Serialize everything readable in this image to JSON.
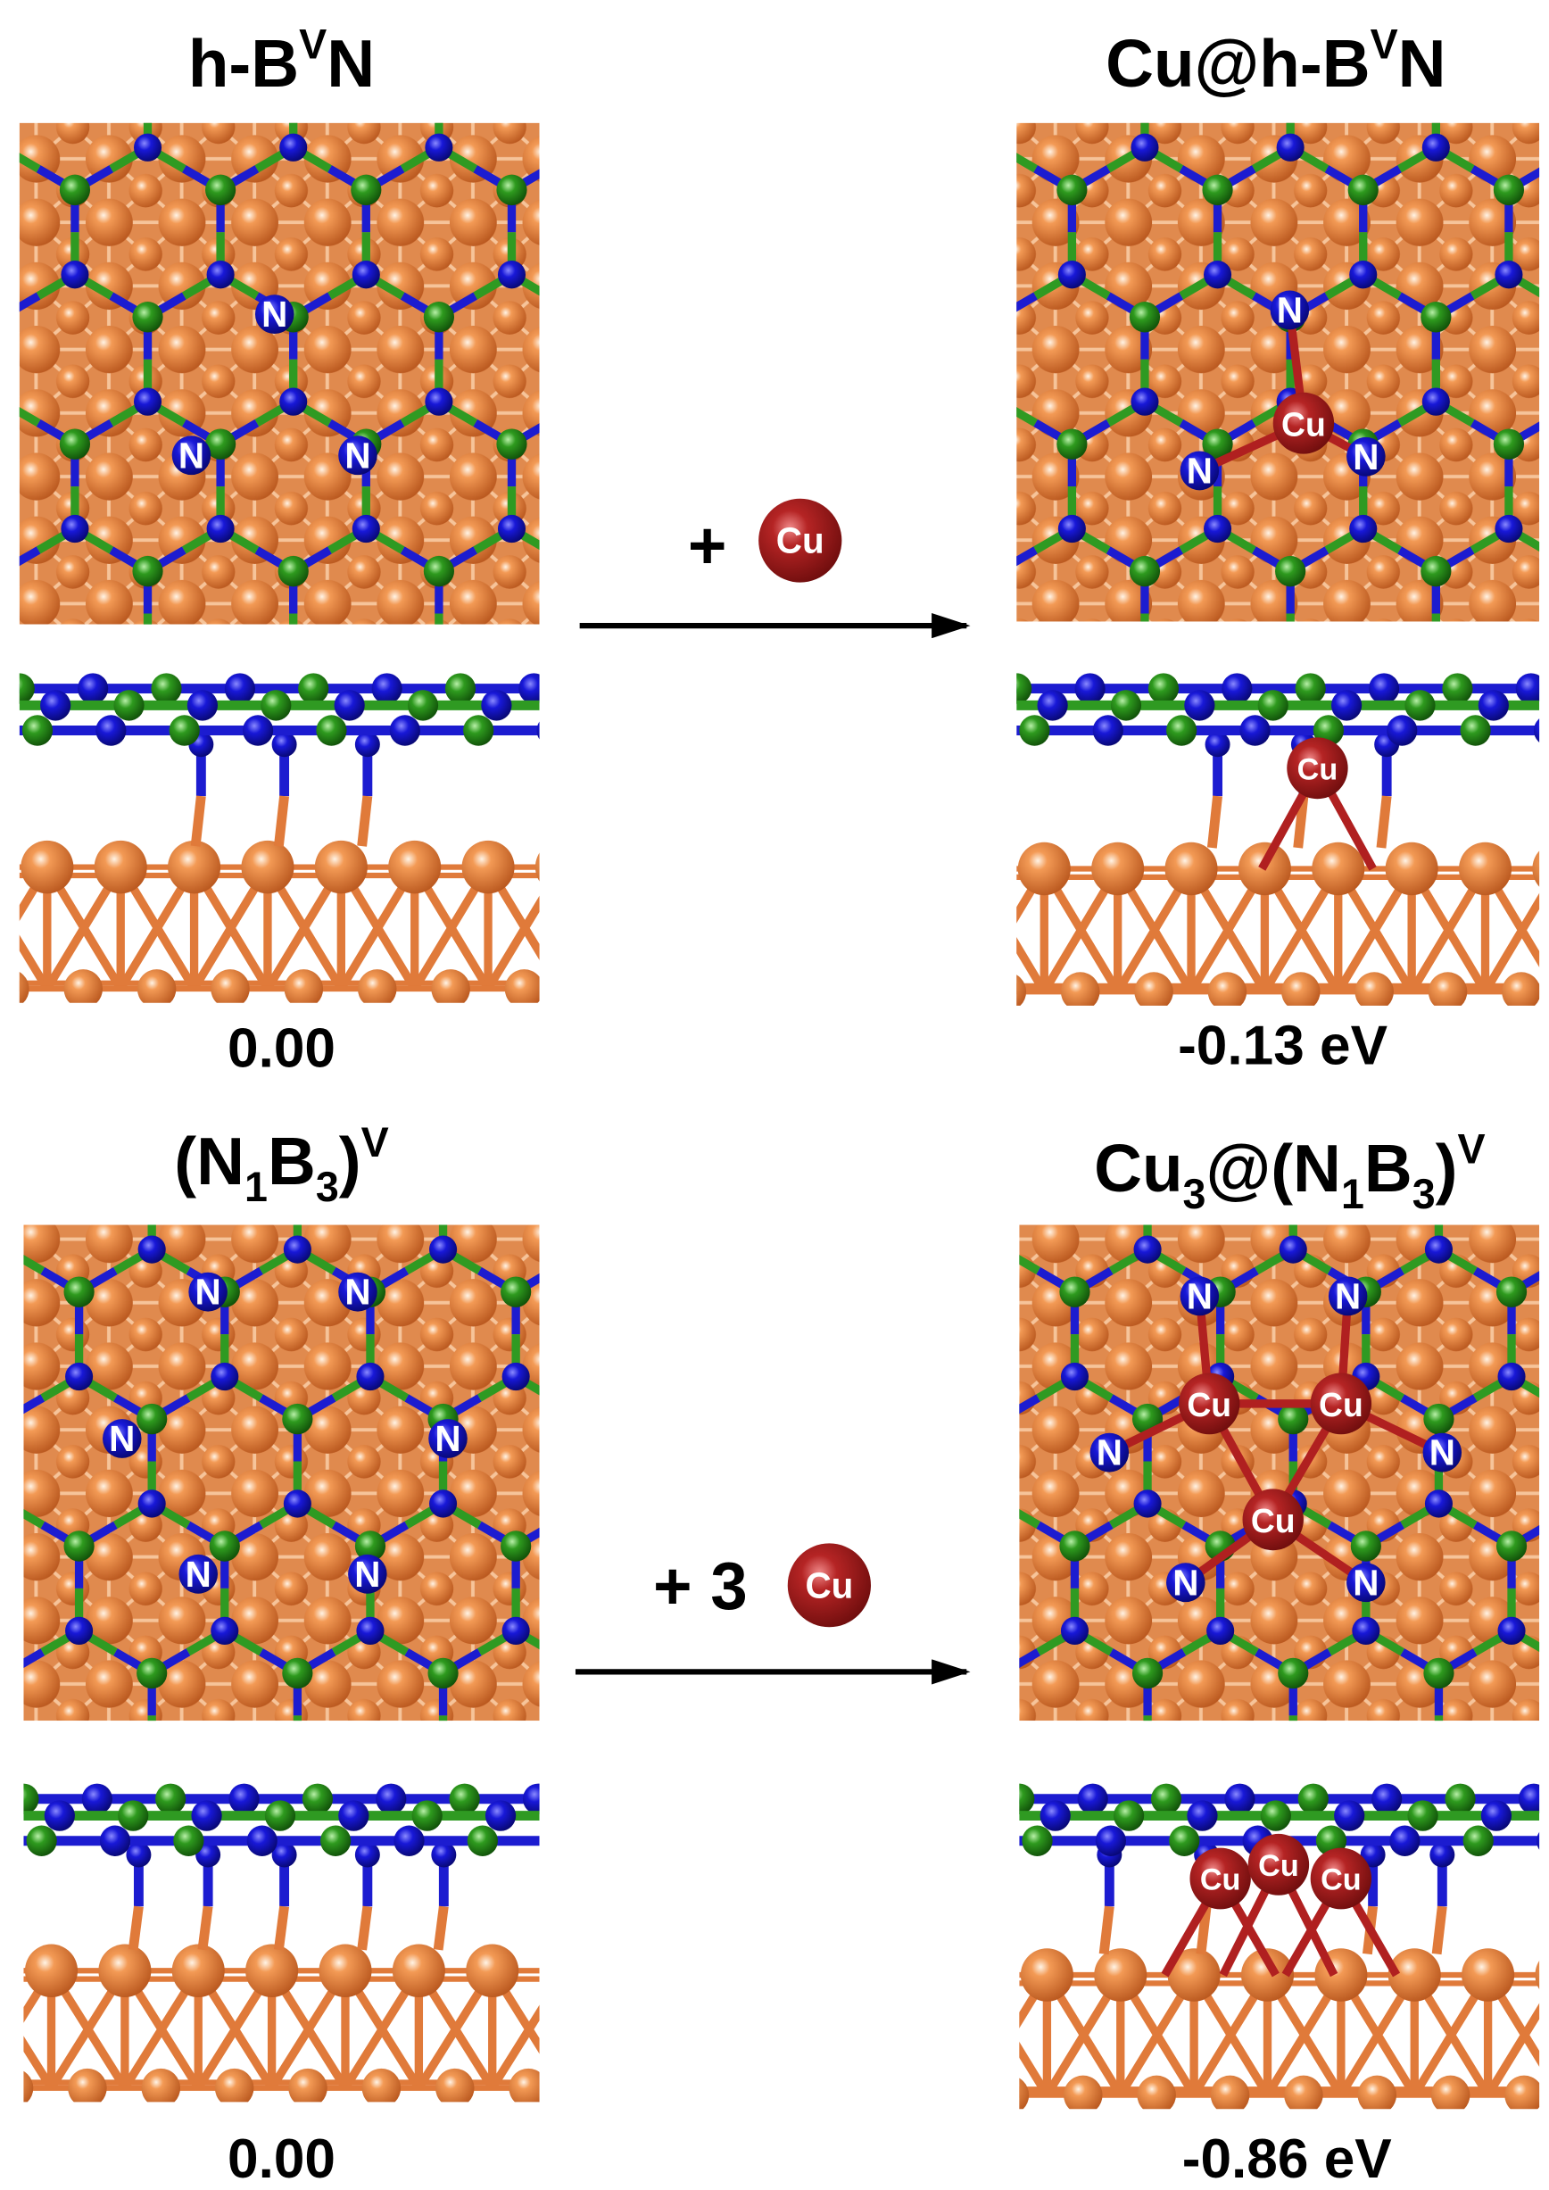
{
  "panels": [
    {
      "title": [
        {
          "text": "h-B"
        },
        {
          "text": "V",
          "style": "sup"
        },
        {
          "text": "N"
        }
      ],
      "energy": "0.00",
      "top_labels": [
        "N",
        "N",
        "N"
      ],
      "side_labels": []
    },
    {
      "title": [
        {
          "text": "Cu@h-B"
        },
        {
          "text": "V",
          "style": "sup"
        },
        {
          "text": "N"
        }
      ],
      "energy": "-0.13 eV",
      "top_labels": [
        "N",
        "Cu",
        "N",
        "N"
      ],
      "side_labels": [
        "Cu"
      ]
    },
    {
      "title": [
        {
          "text": "(N"
        },
        {
          "text": "1",
          "style": "sub"
        },
        {
          "text": "B"
        },
        {
          "text": "3",
          "style": "sub"
        },
        {
          "text": ")"
        },
        {
          "text": "V",
          "style": "sup"
        }
      ],
      "energy": "0.00",
      "top_labels": [
        "N",
        "N",
        "N",
        "N",
        "N",
        "N"
      ],
      "side_labels": []
    },
    {
      "title": [
        {
          "text": "Cu"
        },
        {
          "text": "3",
          "style": "sub"
        },
        {
          "text": "@(N"
        },
        {
          "text": "1",
          "style": "sub"
        },
        {
          "text": "B"
        },
        {
          "text": "3",
          "style": "sub"
        },
        {
          "text": ")"
        },
        {
          "text": "V",
          "style": "sup"
        }
      ],
      "energy": "-0.86 eV",
      "top_labels": [
        "N",
        "N",
        "Cu",
        "Cu",
        "N",
        "N",
        "Cu",
        "N",
        "N"
      ],
      "side_labels": [
        "Cu",
        "Cu",
        "Cu"
      ]
    }
  ],
  "reactions": [
    {
      "plus": "+",
      "atom": "Cu"
    },
    {
      "plus": "+ 3",
      "atom": "Cu"
    }
  ]
}
